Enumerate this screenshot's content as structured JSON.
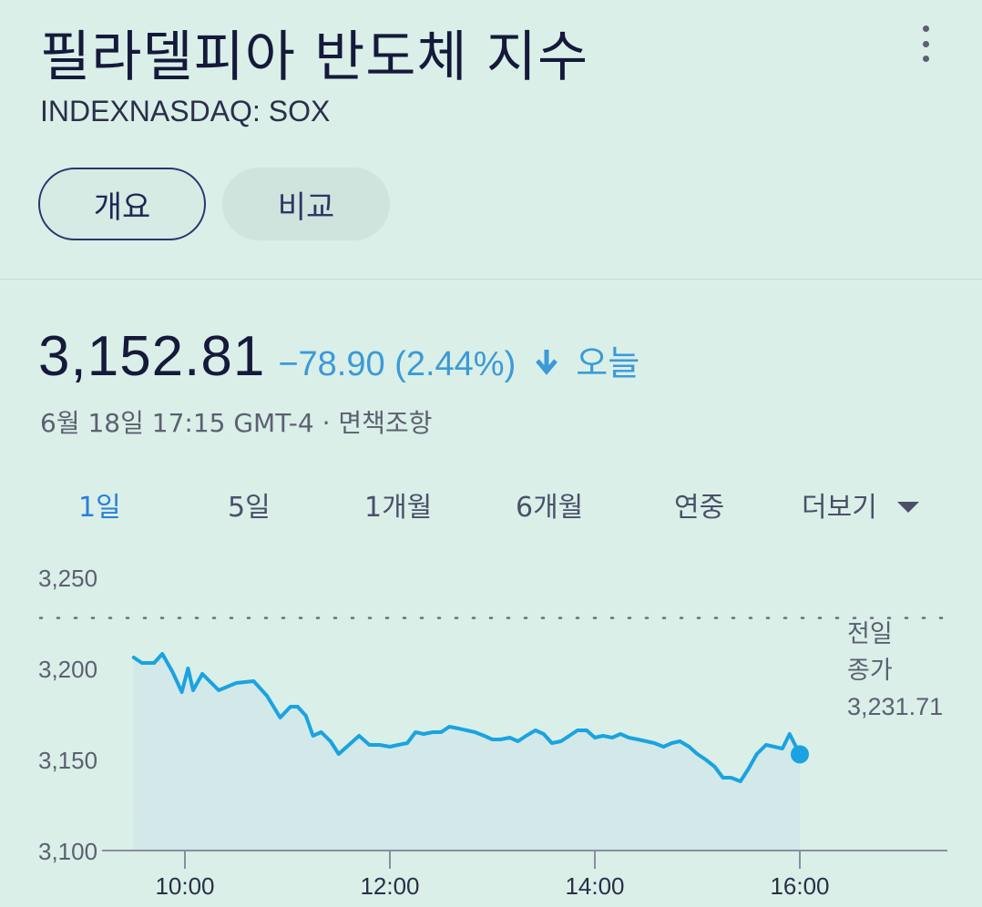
{
  "header": {
    "title": "필라델피아 반도체 지수",
    "ticker": "INDEXNASDAQ: SOX",
    "more_icon": "more-vert-icon"
  },
  "tabs": [
    {
      "label": "개요",
      "active": true
    },
    {
      "label": "비교",
      "active": false
    }
  ],
  "quote": {
    "price": "3,152.81",
    "change": "−78.90 (2.44%)",
    "direction_icon": "arrow-down-icon",
    "period": "오늘",
    "timestamp": "6월 18일 17:15 GMT-4 · ",
    "disclaimer": "면책조항"
  },
  "ranges": [
    {
      "label": "1일",
      "active": true
    },
    {
      "label": "5일",
      "active": false
    },
    {
      "label": "1개월",
      "active": false
    },
    {
      "label": "6개월",
      "active": false
    },
    {
      "label": "연중",
      "active": false
    },
    {
      "label": "더보기",
      "active": false,
      "dropdown": true
    }
  ],
  "colors": {
    "line": "#1aa3e0",
    "fill": "#cfe6ea",
    "down": "#3c9ad6"
  },
  "chart_data": {
    "type": "line",
    "title": "",
    "xlabel": "",
    "ylabel": "",
    "xlim": [
      9.5,
      17.5
    ],
    "ylim": [
      3100,
      3250
    ],
    "x_ticks": [
      10,
      12,
      14,
      16
    ],
    "x_tick_labels": [
      "10:00",
      "12:00",
      "14:00",
      "16:00"
    ],
    "y_ticks": [
      3100,
      3150,
      3200,
      3250
    ],
    "y_tick_labels": [
      "3,100",
      "3,150",
      "3,200",
      "3,250"
    ],
    "previous_close": 3231.71,
    "previous_close_label": [
      "전일",
      "종가",
      "3,231.71"
    ],
    "series": [
      {
        "x": [
          9.5,
          9.58,
          9.7,
          9.78,
          9.88,
          9.97,
          10.03,
          10.08,
          10.17,
          10.33,
          10.5,
          10.67,
          10.8,
          10.93,
          11.03,
          11.1,
          11.18,
          11.25,
          11.33,
          11.42,
          11.5,
          11.6,
          11.7,
          11.8,
          11.9,
          12.0,
          12.08,
          12.17,
          12.25,
          12.33,
          12.42,
          12.5,
          12.58,
          12.67,
          12.75,
          12.83,
          12.92,
          13.0,
          13.08,
          13.17,
          13.25,
          13.33,
          13.42,
          13.5,
          13.58,
          13.67,
          13.75,
          13.83,
          13.92,
          14.0,
          14.08,
          14.17,
          14.25,
          14.33,
          14.42,
          14.5,
          14.58,
          14.67,
          14.75,
          14.83,
          14.92,
          15.0,
          15.08,
          15.17,
          15.25,
          15.33,
          15.42,
          15.5,
          15.58,
          15.67,
          15.75,
          15.83,
          15.9,
          16.0
        ],
        "y": [
          3206,
          3203,
          3203,
          3208,
          3198,
          3187,
          3200,
          3188,
          3197,
          3188,
          3192,
          3193,
          3185,
          3173,
          3179,
          3179,
          3174,
          3163,
          3165,
          3160,
          3153,
          3158,
          3163,
          3158,
          3158,
          3157,
          3158,
          3159,
          3165,
          3164,
          3165,
          3165,
          3168,
          3167,
          3166,
          3165,
          3163,
          3161,
          3161,
          3162,
          3160,
          3163,
          3166,
          3164,
          3159,
          3160,
          3163,
          3166,
          3166,
          3162,
          3163,
          3162,
          3164,
          3162,
          3161,
          3160,
          3159,
          3157,
          3159,
          3160,
          3157,
          3153,
          3150,
          3146,
          3140,
          3140,
          3138,
          3145,
          3153,
          3158,
          3157,
          3156,
          3164,
          3152.81
        ]
      }
    ]
  }
}
